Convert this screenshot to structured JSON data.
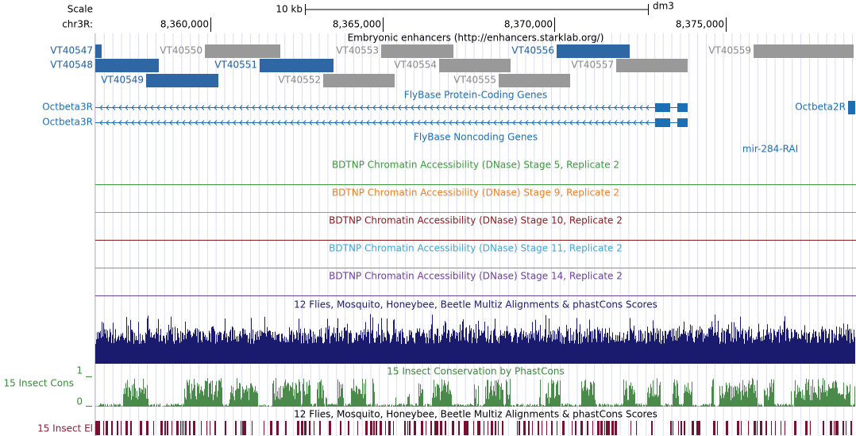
{
  "header": {
    "scale_label": "Scale",
    "chrom_label": "chr3R:",
    "scale_bar": "10 kb",
    "assembly": "dm3",
    "positions": [
      "8,360,000",
      "8,365,000",
      "8,370,000",
      "8,375,000"
    ]
  },
  "tracks": {
    "enhancers": {
      "title": "Embryonic enhancers (http://enhancers.starklab.org/)",
      "items": [
        "VT40547",
        "VT40550",
        "VT40553",
        "VT40556",
        "VT40559",
        "VT40548",
        "VT40551",
        "VT40554",
        "VT40557",
        "VT40549",
        "VT40552",
        "VT40555"
      ]
    },
    "protein_coding": {
      "title": "FlyBase Protein-Coding Genes",
      "genes": [
        "Octbeta3R",
        "Octbeta3R",
        "Octbeta2R"
      ]
    },
    "noncoding": {
      "title": "FlyBase Noncoding Genes",
      "genes": [
        "mir-284-RAI"
      ]
    },
    "dnase": [
      {
        "title": "BDTNP Chromatin Accessibility (DNase) Stage 5, Replicate 2"
      },
      {
        "title": "BDTNP Chromatin Accessibility (DNase) Stage 9, Replicate 2"
      },
      {
        "title": "BDTNP Chromatin Accessibility (DNase) Stage 10, Replicate 2"
      },
      {
        "title": "BDTNP Chromatin Accessibility (DNase) Stage 11, Replicate 2"
      },
      {
        "title": "BDTNP Chromatin Accessibility (DNase) Stage 14, Replicate 2"
      }
    ],
    "multiz": {
      "title": "12 Flies, Mosquito, Honeybee, Beetle Multiz Alignments & phastCons Scores"
    },
    "phastcons": {
      "title": "15 Insect Conservation by PhastCons",
      "label": "15 Insect Cons",
      "max": 1,
      "min": 0
    },
    "elements": {
      "title": "12 Flies, Mosquito, Honeybee, Beetle Multiz Alignments & phastCons Scores",
      "label": "15 Insect El"
    }
  }
}
